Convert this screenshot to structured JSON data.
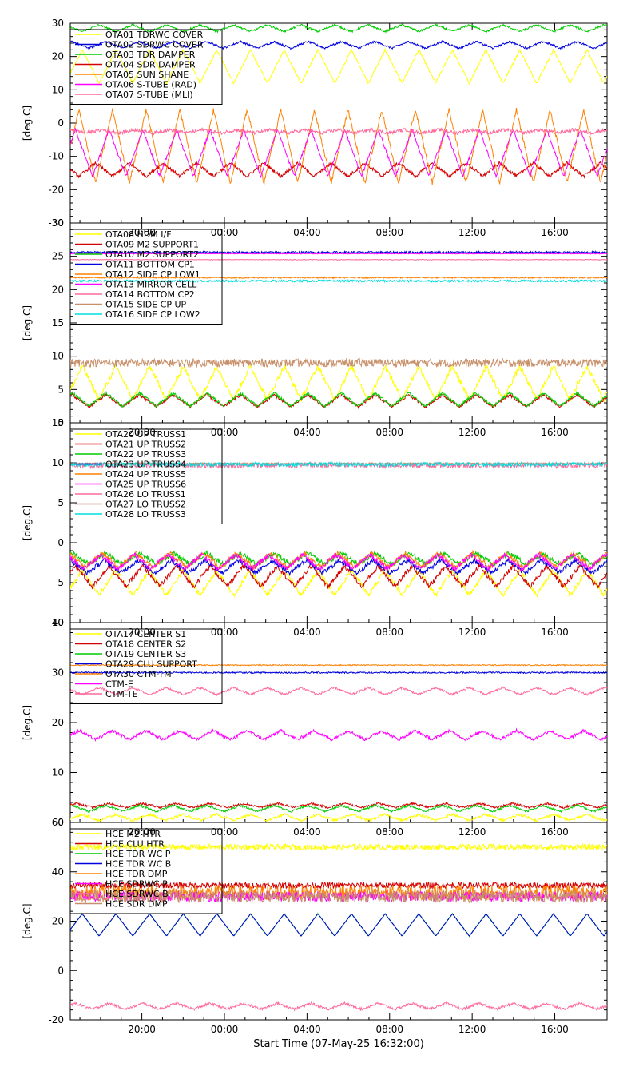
{
  "figure": {
    "xlabel": "Start Time (07-May-25 16:32:00)",
    "x_range_hours": [
      16.533,
      42.533
    ],
    "x_tick_hours": [
      20,
      24,
      28,
      32,
      36,
      40
    ],
    "x_tick_labels": [
      "20:00",
      "00:00",
      "04:00",
      "08:00",
      "12:00",
      "16:00"
    ]
  },
  "chart_data": [
    {
      "type": "line",
      "title": "",
      "ylabel": "[deg.C]",
      "ylim": [
        -30,
        30
      ],
      "y_ticks": [
        -30,
        -20,
        -10,
        0,
        10,
        20,
        30
      ],
      "legend_position": "top-left",
      "series": [
        {
          "name": "OTA01 TDRWC COVER",
          "color": "#ffff00",
          "kind": "periodic",
          "base": 17,
          "amp": 5,
          "period": 1.63,
          "phase": 0.0,
          "noise": 0.3
        },
        {
          "name": "OTA02 SDRWC COVER",
          "color": "#0000dd",
          "kind": "periodic",
          "base": 23.5,
          "amp": 1,
          "period": 1.63,
          "phase": 0.3,
          "noise": 0.3
        },
        {
          "name": "OTA03 TDR DAMPER",
          "color": "#00cc00",
          "kind": "periodic",
          "base": 28.5,
          "amp": 1,
          "period": 1.63,
          "phase": 0.5,
          "noise": 0.3
        },
        {
          "name": "OTA04 SDR DAMPER",
          "color": "#d40000",
          "kind": "periodic",
          "base": -14,
          "amp": 2,
          "period": 1.63,
          "phase": 0.6,
          "noise": 0.5
        },
        {
          "name": "OTA05 SUN SHANE",
          "color": "#ff8000",
          "kind": "periodic",
          "base": -7,
          "amp": 11,
          "period": 1.63,
          "phase": 0.1,
          "noise": 0.6
        },
        {
          "name": "OTA06 S-TUBE (RAD)",
          "color": "#ff00ff",
          "kind": "periodic",
          "base": -9,
          "amp": 7,
          "period": 1.63,
          "phase": 0.2,
          "noise": 0.4
        },
        {
          "name": "OTA07 S-TUBE (MLI)",
          "color": "#ff6a9a",
          "kind": "periodic",
          "base": -2.5,
          "amp": 0.5,
          "period": 1.63,
          "phase": 0.4,
          "noise": 0.5
        }
      ]
    },
    {
      "type": "line",
      "title": "",
      "ylabel": "[deg.C]",
      "ylim": [
        0,
        30
      ],
      "y_ticks": [
        0,
        5,
        10,
        15,
        20,
        25,
        30
      ],
      "legend_position": "top-left",
      "series": [
        {
          "name": "OTA08 HDM I/F",
          "color": "#ffff00",
          "kind": "periodic",
          "base": 6,
          "amp": 2.5,
          "period": 1.63,
          "phase": 0.0,
          "noise": 0.4
        },
        {
          "name": "OTA09 M2 SUPPORT1",
          "color": "#d40000",
          "kind": "periodic",
          "base": 3.3,
          "amp": 0.9,
          "period": 1.63,
          "phase": 0.3,
          "noise": 0.2
        },
        {
          "name": "OTA10 M2 SUPPORT2",
          "color": "#00cc00",
          "kind": "periodic",
          "base": 3.5,
          "amp": 1,
          "period": 1.63,
          "phase": 0.3,
          "noise": 0.2
        },
        {
          "name": "OTA11 BOTTOM CP1",
          "color": "#0000dd",
          "kind": "flat",
          "base": 25.6,
          "amp": 0,
          "period": 1.63,
          "phase": 0.0,
          "noise": 0.15
        },
        {
          "name": "OTA12 SIDE CP LOW1",
          "color": "#ff8000",
          "kind": "flat",
          "base": 21.8,
          "amp": 0,
          "period": 1.63,
          "phase": 0.0,
          "noise": 0.1
        },
        {
          "name": "OTA13 MIRROR CELL",
          "color": "#ff00ff",
          "kind": "flat",
          "base": 25.4,
          "amp": 0,
          "period": 1.63,
          "phase": 0.0,
          "noise": 0.05
        },
        {
          "name": "OTA14 BOTTOM CP2",
          "color": "#ff6a9a",
          "kind": "flat",
          "base": 24.5,
          "amp": 0,
          "period": 1.63,
          "phase": 0.0,
          "noise": 0.05
        },
        {
          "name": "OTA15 SIDE CP UP",
          "color": "#c8906a",
          "kind": "flat",
          "base": 9,
          "amp": 0,
          "period": 1.63,
          "phase": 0.0,
          "noise": 0.6
        },
        {
          "name": "OTA16 SIDE CP LOW2",
          "color": "#00dddd",
          "kind": "flat",
          "base": 21.3,
          "amp": 0,
          "period": 1.63,
          "phase": 0.0,
          "noise": 0.15
        }
      ]
    },
    {
      "type": "line",
      "title": "",
      "ylabel": "[deg.C]",
      "ylim": [
        -10,
        15
      ],
      "y_ticks": [
        -10,
        -5,
        0,
        5,
        10,
        15
      ],
      "legend_position": "top-left",
      "series": [
        {
          "name": "OTA20 UP TRUSS1",
          "color": "#ffff00",
          "kind": "periodic",
          "base": -5,
          "amp": 1.6,
          "period": 1.63,
          "phase": 0.0,
          "noise": 0.3
        },
        {
          "name": "OTA21 UP TRUSS2",
          "color": "#d40000",
          "kind": "periodic",
          "base": -4.2,
          "amp": 1.3,
          "period": 1.63,
          "phase": 0.2,
          "noise": 0.3
        },
        {
          "name": "OTA22 UP TRUSS3",
          "color": "#00cc00",
          "kind": "periodic",
          "base": -2,
          "amp": 0.7,
          "period": 1.63,
          "phase": 0.3,
          "noise": 0.3
        },
        {
          "name": "OTA23 UP TRUSS4",
          "color": "#0000dd",
          "kind": "periodic",
          "base": -3,
          "amp": 0.8,
          "period": 1.63,
          "phase": 0.35,
          "noise": 0.3
        },
        {
          "name": "OTA24 UP TRUSS5",
          "color": "#ff8000",
          "kind": "periodic",
          "base": -2.2,
          "amp": 0.9,
          "period": 1.63,
          "phase": 0.4,
          "noise": 0.3
        },
        {
          "name": "OTA25 UP TRUSS6",
          "color": "#ff00ff",
          "kind": "periodic",
          "base": -2.4,
          "amp": 0.9,
          "period": 1.63,
          "phase": 0.45,
          "noise": 0.3
        },
        {
          "name": "OTA26 LO TRUSS1",
          "color": "#ff6a9a",
          "kind": "flat",
          "base": 9.7,
          "amp": 0,
          "period": 1.63,
          "phase": 0.0,
          "noise": 0.35
        },
        {
          "name": "OTA27 LO TRUSS2",
          "color": "#c8906a",
          "kind": "flat",
          "base": 9.9,
          "amp": 0,
          "period": 1.63,
          "phase": 0.0,
          "noise": 0.1
        },
        {
          "name": "OTA28 LO TRUSS3",
          "color": "#00dddd",
          "kind": "flat",
          "base": 9.8,
          "amp": 0,
          "period": 1.63,
          "phase": 0.0,
          "noise": 0.25
        }
      ]
    },
    {
      "type": "line",
      "title": "",
      "ylabel": "[deg.C]",
      "ylim": [
        0,
        40
      ],
      "y_ticks": [
        0,
        10,
        20,
        30,
        40
      ],
      "legend_position": "top-left",
      "series": [
        {
          "name": "OTA17 CENTER S1",
          "color": "#ffff00",
          "kind": "periodic",
          "base": 1,
          "amp": 0.6,
          "period": 1.63,
          "phase": 0.0,
          "noise": 0.25
        },
        {
          "name": "OTA18 CENTER S2",
          "color": "#d40000",
          "kind": "periodic",
          "base": 3.4,
          "amp": 0.4,
          "period": 1.63,
          "phase": 0.2,
          "noise": 0.2
        },
        {
          "name": "OTA19 CENTER S3",
          "color": "#00cc00",
          "kind": "periodic",
          "base": 2.8,
          "amp": 0.6,
          "period": 1.63,
          "phase": 0.3,
          "noise": 0.2
        },
        {
          "name": "OTA29 CLU SUPPORT",
          "color": "#0000dd",
          "kind": "flat",
          "base": 30,
          "amp": 0,
          "period": 1.63,
          "phase": 0.0,
          "noise": 0.15
        },
        {
          "name": "OTA30 CTM-TM",
          "color": "#ff8000",
          "kind": "flat",
          "base": 31.5,
          "amp": 0,
          "period": 1.63,
          "phase": 0.0,
          "noise": 0.1
        },
        {
          "name": "CTM-E",
          "color": "#ff00ff",
          "kind": "periodic",
          "base": 17.5,
          "amp": 0.9,
          "period": 1.63,
          "phase": 0.1,
          "noise": 0.3
        },
        {
          "name": "CTM-TE",
          "color": "#ff6a9a",
          "kind": "periodic",
          "base": 26.3,
          "amp": 0.7,
          "period": 1.63,
          "phase": 0.5,
          "noise": 0.2
        }
      ]
    },
    {
      "type": "line",
      "title": "",
      "ylabel": "[deg.C]",
      "ylim": [
        -20,
        60
      ],
      "y_ticks": [
        -20,
        0,
        20,
        40,
        60
      ],
      "legend_position": "top-left",
      "series": [
        {
          "name": "HCE M2 HTR",
          "color": "#ffff00",
          "kind": "flat",
          "base": 50,
          "amp": 0,
          "period": 1.63,
          "phase": 0.0,
          "noise": 1.2
        },
        {
          "name": "HCE CLU HTR",
          "color": "#d40000",
          "kind": "flat",
          "base": 34.5,
          "amp": 0,
          "period": 1.63,
          "phase": 0.0,
          "noise": 1.2
        },
        {
          "name": "HCE TDR WC P",
          "color": "#00cc00",
          "kind": "periodic",
          "base": 18.5,
          "amp": 4.5,
          "period": 1.63,
          "phase": 0.0,
          "noise": 0.2
        },
        {
          "name": "HCE TDR WC B",
          "color": "#0000dd",
          "kind": "periodic",
          "base": 18.5,
          "amp": 4.5,
          "period": 1.63,
          "phase": 0.0,
          "noise": 0.1
        },
        {
          "name": "HCE TDR DMP",
          "color": "#ff8000",
          "kind": "flat",
          "base": 31.5,
          "amp": 0,
          "period": 1.63,
          "phase": 0.0,
          "noise": 3.0
        },
        {
          "name": "HCE SDRWC P",
          "color": "#ff00ff",
          "kind": "flat",
          "base": 30,
          "amp": 0,
          "period": 1.63,
          "phase": 0.0,
          "noise": 2.0
        },
        {
          "name": "HCE SDRWC B",
          "color": "#ff6a9a",
          "kind": "periodic",
          "base": -14.5,
          "amp": 1.2,
          "period": 1.63,
          "phase": 0.2,
          "noise": 0.5
        },
        {
          "name": "HCE SDR DMP",
          "color": "#c8906a",
          "kind": "flat",
          "base": 30,
          "amp": 0,
          "period": 1.63,
          "phase": 0.0,
          "noise": 2.5
        }
      ]
    }
  ]
}
